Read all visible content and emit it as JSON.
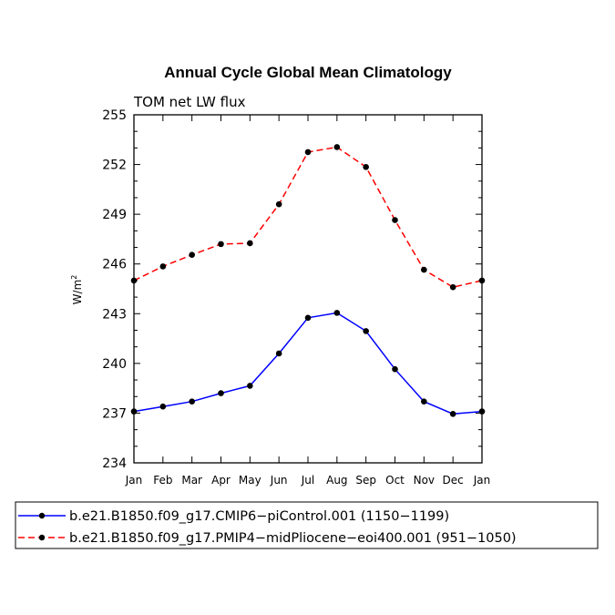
{
  "chart_data": {
    "type": "line",
    "title": "Annual Cycle Global Mean Climatology",
    "subtitle": "TOM net LW flux",
    "xlabel": "",
    "ylabel": "W/m",
    "ylabel_superscript": "2",
    "categories": [
      "Jan",
      "Feb",
      "Mar",
      "Apr",
      "May",
      "Jun",
      "Jul",
      "Aug",
      "Sep",
      "Oct",
      "Nov",
      "Dec",
      "Jan"
    ],
    "ylim": [
      234,
      255
    ],
    "yticks": [
      234,
      237,
      240,
      243,
      246,
      249,
      252,
      255
    ],
    "grid": false,
    "series": [
      {
        "name": "b.e21.B1850.f09_g17.CMIP6−piControl.001 (1150−1199)",
        "color": "#0000ff",
        "dash": "solid",
        "values": [
          237.1,
          237.4,
          237.7,
          238.2,
          238.65,
          240.6,
          242.75,
          243.05,
          241.95,
          239.65,
          237.7,
          236.95,
          237.1
        ]
      },
      {
        "name": "b.e21.B1850.f09_g17.PMIP4−midPliocene−eoi400.001 (951−1050)",
        "color": "#ff0000",
        "dash": "dashed",
        "values": [
          245.0,
          245.85,
          246.55,
          247.2,
          247.25,
          249.6,
          252.75,
          253.05,
          251.85,
          248.65,
          245.65,
          244.6,
          245.0
        ]
      }
    ],
    "legend_position": "bottom"
  }
}
